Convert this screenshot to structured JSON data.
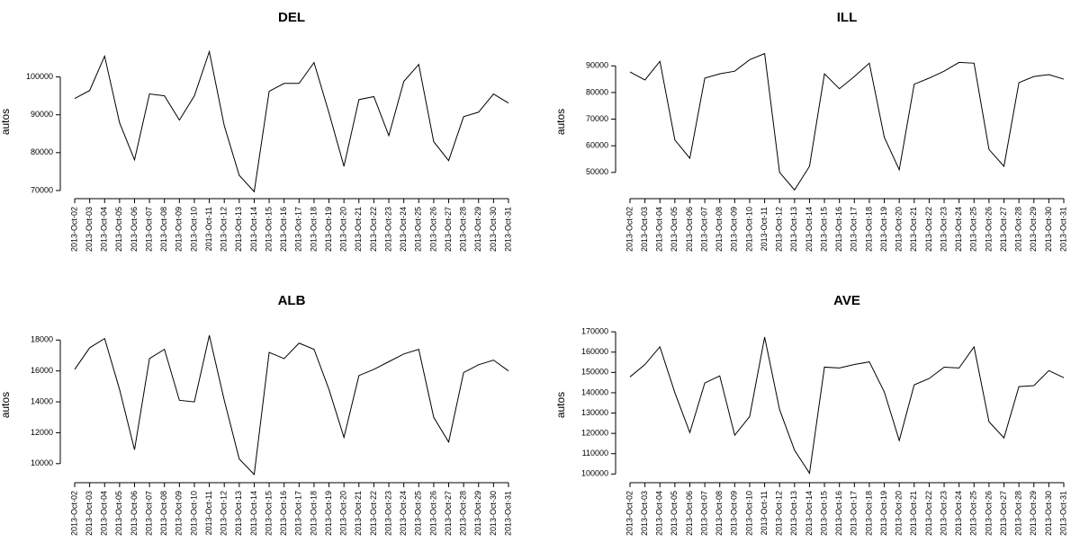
{
  "chart_data": [
    {
      "type": "line",
      "title": "DEL",
      "y_label": "autos",
      "x": [
        "2013-Oct-02",
        "2013-Oct-03",
        "2013-Oct-04",
        "2013-Oct-05",
        "2013-Oct-06",
        "2013-Oct-07",
        "2013-Oct-08",
        "2013-Oct-09",
        "2013-Oct-10",
        "2013-Oct-11",
        "2013-Oct-12",
        "2013-Oct-13",
        "2013-Oct-14",
        "2013-Oct-15",
        "2013-Oct-16",
        "2013-Oct-17",
        "2013-Oct-18",
        "2013-Oct-19",
        "2013-Oct-20",
        "2013-Oct-21",
        "2013-Oct-22",
        "2013-Oct-23",
        "2013-Oct-24",
        "2013-Oct-25",
        "2013-Oct-26",
        "2013-Oct-27",
        "2013-Oct-28",
        "2013-Oct-29",
        "2013-Oct-30",
        "2013-Oct-31"
      ],
      "values": [
        94300,
        96400,
        105500,
        87900,
        78100,
        95500,
        95000,
        88600,
        95000,
        106700,
        87100,
        74000,
        69700,
        96200,
        98300,
        98300,
        103800,
        90500,
        76400,
        94000,
        94800,
        84500,
        98800,
        103300,
        82900,
        77900,
        89500,
        90700,
        95500,
        93100
      ],
      "color": "#000000",
      "ylim": [
        68800,
        107500
      ],
      "yticks": [
        70000,
        80000,
        90000,
        100000
      ]
    },
    {
      "type": "line",
      "title": "ILL",
      "y_label": "autos",
      "x": [
        "2013-Oct-02",
        "2013-Oct-03",
        "2013-Oct-04",
        "2013-Oct-05",
        "2013-Oct-06",
        "2013-Oct-07",
        "2013-Oct-08",
        "2013-Oct-09",
        "2013-Oct-10",
        "2013-Oct-11",
        "2013-Oct-12",
        "2013-Oct-13",
        "2013-Oct-14",
        "2013-Oct-15",
        "2013-Oct-16",
        "2013-Oct-17",
        "2013-Oct-18",
        "2013-Oct-19",
        "2013-Oct-20",
        "2013-Oct-21",
        "2013-Oct-22",
        "2013-Oct-23",
        "2013-Oct-24",
        "2013-Oct-25",
        "2013-Oct-26",
        "2013-Oct-27",
        "2013-Oct-28",
        "2013-Oct-29",
        "2013-Oct-30",
        "2013-Oct-31"
      ],
      "values": [
        87700,
        84700,
        91700,
        62200,
        55300,
        85400,
        87000,
        88000,
        92300,
        94600,
        50000,
        43400,
        52300,
        87000,
        81400,
        86000,
        91000,
        63200,
        51000,
        83100,
        85400,
        88000,
        91300,
        91000,
        58600,
        52300,
        83700,
        86000,
        86700,
        85000
      ],
      "color": "#000000",
      "ylim": [
        41500,
        96500
      ],
      "yticks": [
        50000,
        60000,
        70000,
        80000,
        90000
      ]
    },
    {
      "type": "line",
      "title": "ALB",
      "y_label": "autos",
      "x": [
        "2013-Oct-02",
        "2013-Oct-03",
        "2013-Oct-04",
        "2013-Oct-05",
        "2013-Oct-06",
        "2013-Oct-07",
        "2013-Oct-08",
        "2013-Oct-09",
        "2013-Oct-10",
        "2013-Oct-11",
        "2013-Oct-12",
        "2013-Oct-13",
        "2013-Oct-14",
        "2013-Oct-15",
        "2013-Oct-16",
        "2013-Oct-17",
        "2013-Oct-18",
        "2013-Oct-19",
        "2013-Oct-20",
        "2013-Oct-21",
        "2013-Oct-22",
        "2013-Oct-23",
        "2013-Oct-24",
        "2013-Oct-25",
        "2013-Oct-26",
        "2013-Oct-27",
        "2013-Oct-28",
        "2013-Oct-29",
        "2013-Oct-30",
        "2013-Oct-31"
      ],
      "values": [
        16100,
        17500,
        18100,
        14800,
        10900,
        16800,
        17400,
        14100,
        14000,
        18300,
        14100,
        10300,
        9300,
        17200,
        16800,
        17800,
        17400,
        14800,
        11700,
        15700,
        16100,
        16600,
        17100,
        17400,
        13000,
        11400,
        15900,
        16400,
        16700,
        16000
      ],
      "color": "#000000",
      "ylim": [
        9000,
        18600
      ],
      "yticks": [
        10000,
        12000,
        14000,
        16000,
        18000
      ]
    },
    {
      "type": "line",
      "title": "AVE",
      "y_label": "autos",
      "x": [
        "2013-Oct-02",
        "2013-Oct-03",
        "2013-Oct-04",
        "2013-Oct-05",
        "2013-Oct-06",
        "2013-Oct-07",
        "2013-Oct-08",
        "2013-Oct-09",
        "2013-Oct-10",
        "2013-Oct-11",
        "2013-Oct-12",
        "2013-Oct-13",
        "2013-Oct-14",
        "2013-Oct-15",
        "2013-Oct-16",
        "2013-Oct-17",
        "2013-Oct-18",
        "2013-Oct-19",
        "2013-Oct-20",
        "2013-Oct-21",
        "2013-Oct-22",
        "2013-Oct-23",
        "2013-Oct-24",
        "2013-Oct-25",
        "2013-Oct-26",
        "2013-Oct-27",
        "2013-Oct-28",
        "2013-Oct-29",
        "2013-Oct-30",
        "2013-Oct-31"
      ],
      "values": [
        147800,
        153900,
        162600,
        140000,
        120400,
        144800,
        148300,
        119100,
        128300,
        167400,
        131700,
        111700,
        100400,
        152600,
        152200,
        153900,
        155200,
        140400,
        116500,
        143900,
        147000,
        152600,
        152200,
        162600,
        125700,
        117800,
        143000,
        143500,
        150900,
        147400
      ],
      "color": "#000000",
      "ylim": [
        97500,
        170500
      ],
      "yticks": [
        100000,
        110000,
        120000,
        130000,
        140000,
        150000,
        160000,
        170000
      ]
    }
  ]
}
